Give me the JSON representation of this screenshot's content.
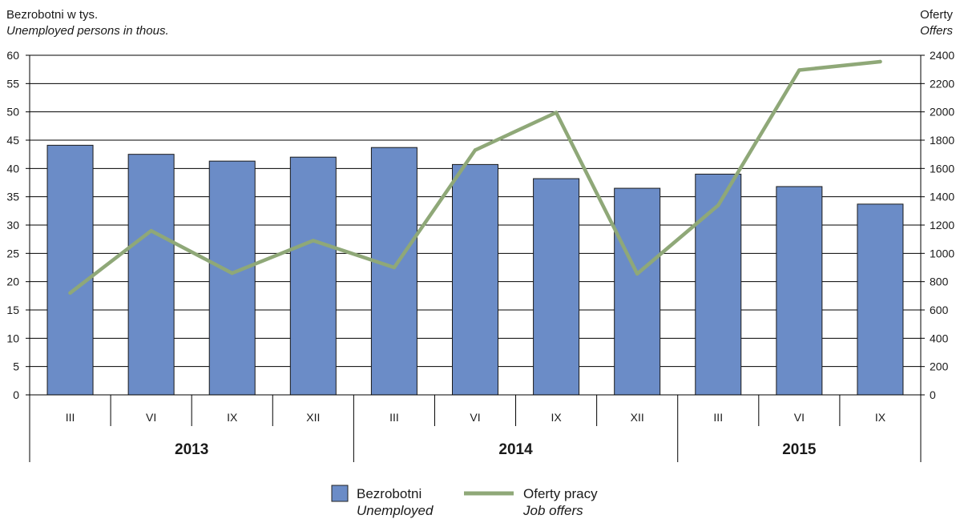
{
  "chart_data": {
    "type": "bar",
    "titles": {
      "left": "Bezrobotni w tys.",
      "left_en": "Unemployed persons in thous.",
      "right": "Oferty",
      "right_en": "Offers"
    },
    "categories": [
      "III",
      "VI",
      "IX",
      "XII",
      "III",
      "VI",
      "IX",
      "XII",
      "III",
      "VI",
      "IX"
    ],
    "years": [
      {
        "label": "2013",
        "span": 4
      },
      {
        "label": "2014",
        "span": 4
      },
      {
        "label": "2015",
        "span": 3
      }
    ],
    "y_left": {
      "min": 0,
      "max": 60,
      "step": 5,
      "ticks": [
        "0",
        "5",
        "10",
        "15",
        "20",
        "25",
        "30",
        "35",
        "40",
        "45",
        "50",
        "55",
        "60"
      ]
    },
    "y_right": {
      "min": 0,
      "max": 2400,
      "step": 200,
      "ticks": [
        "0",
        "200",
        "400",
        "600",
        "800",
        "1000",
        "1200",
        "1400",
        "1600",
        "1800",
        "2000",
        "2200",
        "2400"
      ]
    },
    "series": [
      {
        "name": "Bezrobotni",
        "name_en": "Unemployed",
        "type": "bar",
        "axis": "left",
        "color": "#6b8cc7",
        "values": [
          44.1,
          42.5,
          41.3,
          42.0,
          43.7,
          40.7,
          38.2,
          36.5,
          39.0,
          36.8,
          33.7
        ]
      },
      {
        "name": "Oferty pracy",
        "name_en": "Job offers",
        "type": "line",
        "axis": "right",
        "color": "#8fa878",
        "values": [
          720,
          1160,
          860,
          1090,
          900,
          1730,
          1995,
          855,
          1340,
          2295,
          2355
        ]
      }
    ],
    "grid": true,
    "legend_position": "bottom-center"
  }
}
